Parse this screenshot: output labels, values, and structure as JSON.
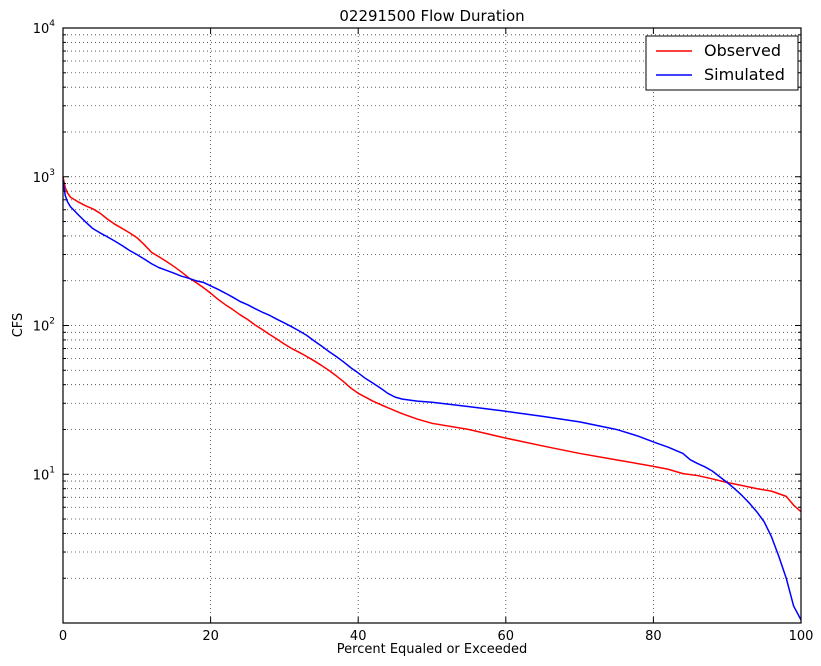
{
  "chart_data": {
    "type": "line",
    "title": "02291500 Flow Duration",
    "xlabel": "Percent Equaled or Exceeded",
    "ylabel": "CFS",
    "xlim": [
      0,
      100
    ],
    "ylim": [
      1,
      10000
    ],
    "y_scale": "log",
    "grid": true,
    "legend_position": "top-right",
    "x_ticks": [
      0,
      20,
      40,
      60,
      80,
      100
    ],
    "y_ticks": [
      {
        "value": 10,
        "base": "10",
        "exp": "1"
      },
      {
        "value": 100,
        "base": "10",
        "exp": "2"
      },
      {
        "value": 1000,
        "base": "10",
        "exp": "3"
      },
      {
        "value": 10000,
        "base": "10",
        "exp": "4"
      }
    ],
    "series": [
      {
        "name": "Observed",
        "color": "#ff0000",
        "points": [
          [
            0,
            1000
          ],
          [
            0.3,
            850
          ],
          [
            0.6,
            780
          ],
          [
            1,
            730
          ],
          [
            2,
            680
          ],
          [
            3,
            640
          ],
          [
            4,
            610
          ],
          [
            5,
            570
          ],
          [
            6,
            520
          ],
          [
            7,
            480
          ],
          [
            8,
            450
          ],
          [
            9,
            420
          ],
          [
            10,
            390
          ],
          [
            11,
            350
          ],
          [
            12,
            310
          ],
          [
            13,
            290
          ],
          [
            14,
            270
          ],
          [
            15,
            250
          ],
          [
            16,
            230
          ],
          [
            17,
            210
          ],
          [
            18,
            195
          ],
          [
            19,
            180
          ],
          [
            20,
            165
          ],
          [
            21,
            150
          ],
          [
            22,
            138
          ],
          [
            23,
            128
          ],
          [
            24,
            118
          ],
          [
            25,
            110
          ],
          [
            26,
            101
          ],
          [
            27,
            94
          ],
          [
            28,
            87
          ],
          [
            29,
            81
          ],
          [
            30,
            75
          ],
          [
            31,
            70
          ],
          [
            32,
            66
          ],
          [
            33,
            62
          ],
          [
            34,
            58
          ],
          [
            35,
            54
          ],
          [
            36,
            50
          ],
          [
            37,
            46
          ],
          [
            38,
            42
          ],
          [
            39,
            38
          ],
          [
            40,
            35
          ],
          [
            42,
            31
          ],
          [
            44,
            28
          ],
          [
            46,
            25.5
          ],
          [
            48,
            23.5
          ],
          [
            50,
            22
          ],
          [
            55,
            20
          ],
          [
            60,
            17.5
          ],
          [
            65,
            15.5
          ],
          [
            70,
            13.8
          ],
          [
            75,
            12.5
          ],
          [
            80,
            11.3
          ],
          [
            82,
            10.8
          ],
          [
            84,
            10.1
          ],
          [
            86,
            9.8
          ],
          [
            88,
            9.3
          ],
          [
            90,
            8.8
          ],
          [
            92,
            8.4
          ],
          [
            94,
            8.0
          ],
          [
            96,
            7.7
          ],
          [
            98,
            7.1
          ],
          [
            99,
            6.2
          ],
          [
            100,
            5.6
          ]
        ]
      },
      {
        "name": "Simulated",
        "color": "#0000ff",
        "points": [
          [
            0,
            950
          ],
          [
            0.3,
            750
          ],
          [
            0.6,
            680
          ],
          [
            1,
            630
          ],
          [
            2,
            560
          ],
          [
            3,
            500
          ],
          [
            4,
            450
          ],
          [
            5,
            420
          ],
          [
            6,
            395
          ],
          [
            7,
            370
          ],
          [
            8,
            345
          ],
          [
            9,
            320
          ],
          [
            10,
            300
          ],
          [
            11,
            280
          ],
          [
            12,
            260
          ],
          [
            13,
            245
          ],
          [
            14,
            235
          ],
          [
            15,
            225
          ],
          [
            16,
            215
          ],
          [
            17,
            208
          ],
          [
            18,
            200
          ],
          [
            19,
            195
          ],
          [
            20,
            185
          ],
          [
            21,
            175
          ],
          [
            22,
            165
          ],
          [
            23,
            155
          ],
          [
            24,
            145
          ],
          [
            25,
            138
          ],
          [
            26,
            130
          ],
          [
            27,
            123
          ],
          [
            28,
            117
          ],
          [
            29,
            110
          ],
          [
            30,
            104
          ],
          [
            31,
            98
          ],
          [
            32,
            92
          ],
          [
            33,
            86
          ],
          [
            34,
            79
          ],
          [
            35,
            73
          ],
          [
            36,
            67
          ],
          [
            37,
            62
          ],
          [
            38,
            57
          ],
          [
            39,
            52
          ],
          [
            40,
            48
          ],
          [
            41,
            44
          ],
          [
            42,
            41
          ],
          [
            43,
            38
          ],
          [
            44,
            35
          ],
          [
            45,
            33
          ],
          [
            46,
            32
          ],
          [
            48,
            31
          ],
          [
            50,
            30.5
          ],
          [
            55,
            28.5
          ],
          [
            60,
            26.5
          ],
          [
            65,
            24.5
          ],
          [
            70,
            22.5
          ],
          [
            75,
            20
          ],
          [
            78,
            18
          ],
          [
            80,
            16.5
          ],
          [
            82,
            15.2
          ],
          [
            84,
            13.8
          ],
          [
            85,
            12.5
          ],
          [
            86,
            11.8
          ],
          [
            87,
            11.2
          ],
          [
            88,
            10.5
          ],
          [
            89,
            9.6
          ],
          [
            90,
            8.8
          ],
          [
            91,
            8.0
          ],
          [
            92,
            7.2
          ],
          [
            93,
            6.4
          ],
          [
            94,
            5.6
          ],
          [
            95,
            4.8
          ],
          [
            96,
            3.8
          ],
          [
            97,
            2.8
          ],
          [
            98,
            2.0
          ],
          [
            99,
            1.3
          ],
          [
            100,
            1.05
          ]
        ]
      }
    ]
  }
}
